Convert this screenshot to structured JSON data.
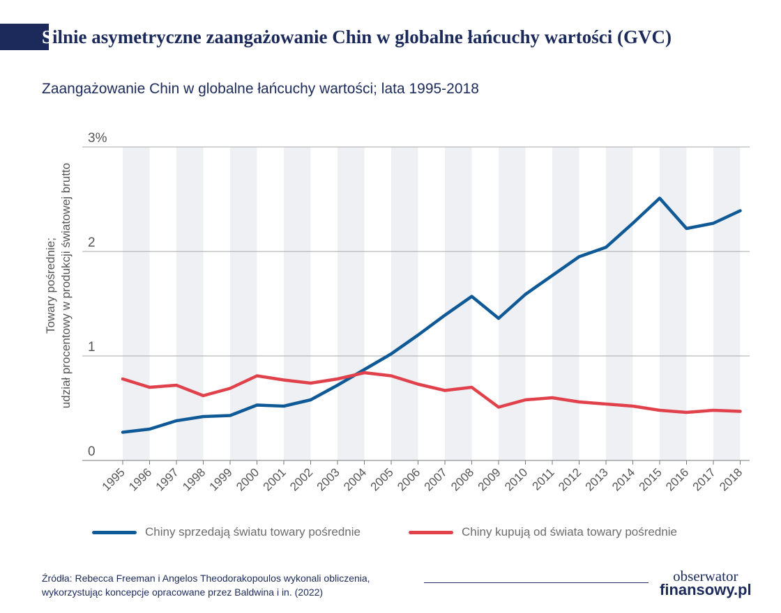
{
  "header": {
    "title_initial": "S",
    "title_rest": "ilnie asymetryczne zaangażowanie Chin w globalne łańcuchy wartości (GVC)"
  },
  "subtitle": "Zaangażowanie Chin w globalne łańcuchy wartości; lata 1995-2018",
  "source": {
    "line1": "Źródła: Rebecca Freeman i Angelos Theodorakopoulos wykonali obliczenia,",
    "line2": "wykorzystując koncepcje opracowane przez Baldwina i in. (2022)"
  },
  "logo": {
    "line1": "obserwator",
    "line2": "finansowy.pl"
  },
  "colors": {
    "navy": "#1b2a5a",
    "blue": "#0f5a96",
    "red": "#e0414b",
    "band": "#eef0f4"
  },
  "chart_data": {
    "type": "line",
    "title": "Zaangażowanie Chin w globalne łańcuchy wartości; lata 1995-2018",
    "ylabel_line1": "Towary pośrednie;",
    "ylabel_line2": "udział procentowy w produkcji światowej brutto",
    "ylim": [
      0,
      3
    ],
    "yticks": [
      {
        "value": 0,
        "label": "0"
      },
      {
        "value": 1,
        "label": "1"
      },
      {
        "value": 2,
        "label": "2"
      },
      {
        "value": 3,
        "label": "3%"
      }
    ],
    "grid": true,
    "legend_position": "bottom",
    "x": [
      "1995",
      "1996",
      "1997",
      "1998",
      "1999",
      "2000",
      "2001",
      "2002",
      "2003",
      "2004",
      "2005",
      "2006",
      "2007",
      "2008",
      "2009",
      "2010",
      "2011",
      "2012",
      "2013",
      "2014",
      "2015",
      "2016",
      "2017",
      "2018"
    ],
    "series": [
      {
        "name": "Chiny sprzedają światu towary pośrednie",
        "color": "#0f5a96",
        "values": [
          0.27,
          0.3,
          0.38,
          0.42,
          0.43,
          0.53,
          0.52,
          0.58,
          0.72,
          0.87,
          1.02,
          1.2,
          1.39,
          1.57,
          1.36,
          1.59,
          1.77,
          1.95,
          2.04,
          2.27,
          2.51,
          2.22,
          2.27,
          2.39
        ]
      },
      {
        "name": "Chiny kupują od świata towary pośrednie",
        "color": "#e0414b",
        "values": [
          0.78,
          0.7,
          0.72,
          0.62,
          0.69,
          0.81,
          0.77,
          0.74,
          0.78,
          0.84,
          0.81,
          0.73,
          0.67,
          0.7,
          0.51,
          0.58,
          0.6,
          0.56,
          0.54,
          0.52,
          0.48,
          0.46,
          0.48,
          0.47
        ]
      }
    ]
  }
}
